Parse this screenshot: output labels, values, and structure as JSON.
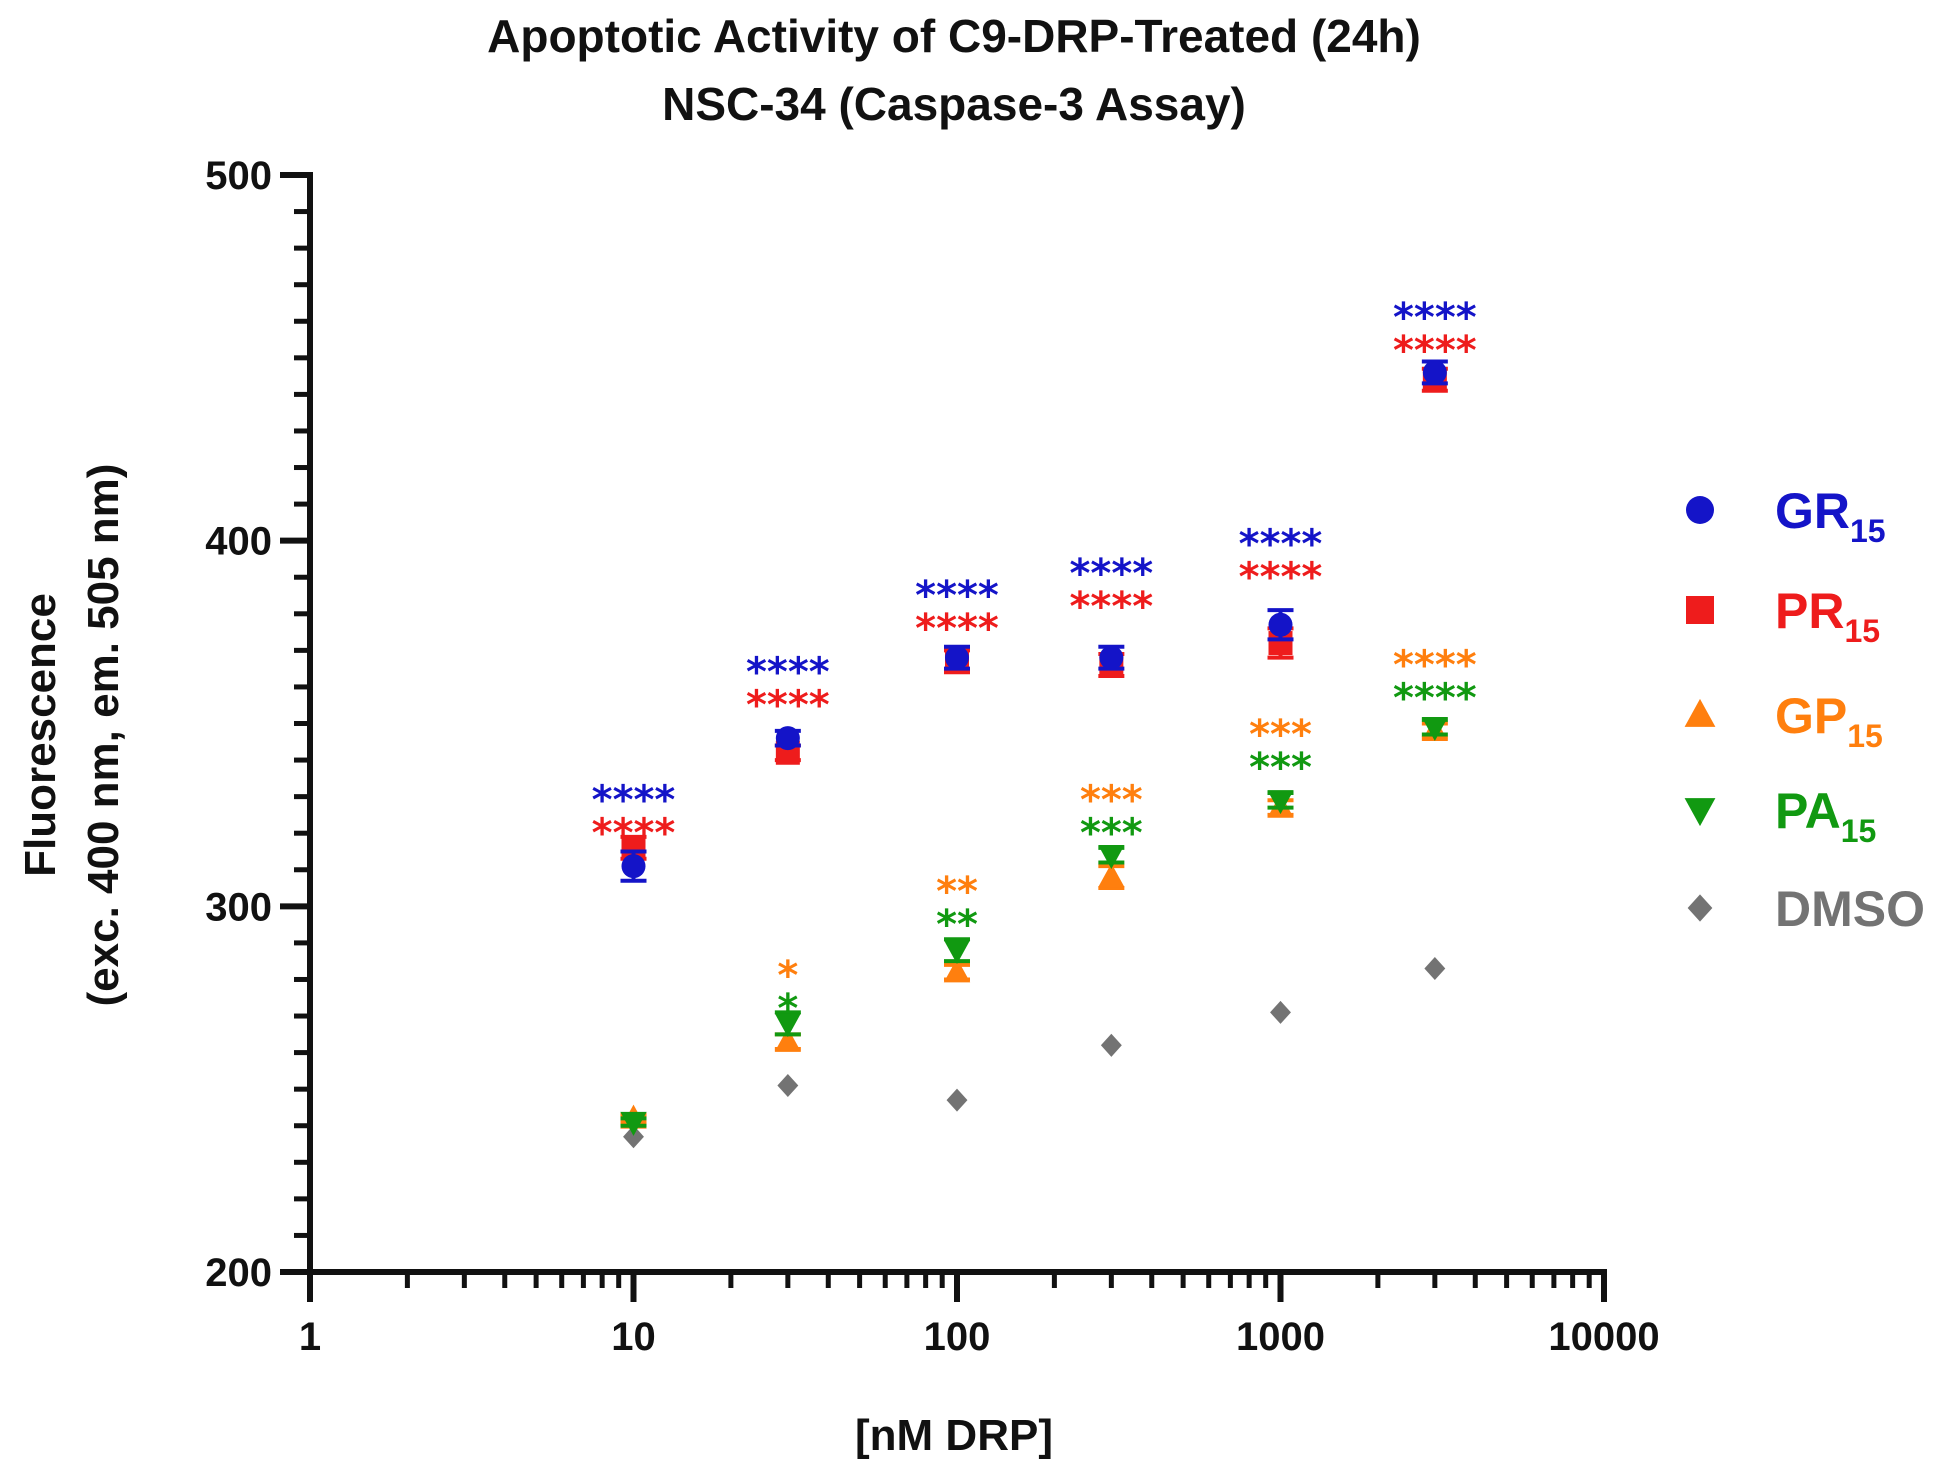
{
  "chart_data": {
    "type": "scatter",
    "title_lines": [
      "Apoptotic Activity of C9-DRP-Treated (24h)",
      "NSC-34 (Caspase-3 Assay)"
    ],
    "xlabel": "[nM DRP]",
    "ylabel_lines": [
      "Fluorescence",
      "(exc. 400 nm, em. 505 nm)"
    ],
    "xscale": "log",
    "xlim": [
      1,
      10000
    ],
    "ylim": [
      200,
      500
    ],
    "x_ticks": [
      1,
      10,
      100,
      1000,
      10000
    ],
    "x_tick_labels": [
      "1",
      "10",
      "100",
      "1000",
      "10000"
    ],
    "y_ticks": [
      200,
      300,
      400,
      500
    ],
    "y_tick_labels": [
      "200",
      "300",
      "400",
      "500"
    ],
    "y_minor_step": 10,
    "legend_position": "right",
    "series": [
      {
        "name": "GR",
        "subscript": "15",
        "marker": "circle",
        "color": "#1414c8",
        "x": [
          10,
          30,
          100,
          300,
          1000,
          3000
        ],
        "values": [
          311,
          346,
          368,
          368,
          377,
          446
        ],
        "err": [
          4,
          2,
          3,
          3,
          4,
          3
        ]
      },
      {
        "name": "PR",
        "subscript": "15",
        "marker": "square",
        "color": "#ee1c1c",
        "x": [
          10,
          30,
          100,
          300,
          1000,
          3000
        ],
        "values": [
          316,
          342,
          367,
          366,
          372,
          444
        ],
        "err": [
          3,
          2,
          3,
          3,
          4,
          3
        ]
      },
      {
        "name": "GP",
        "subscript": "15",
        "marker": "triangle-up",
        "color": "#ff7f0e",
        "x": [
          10,
          30,
          100,
          300,
          1000,
          3000
        ],
        "values": [
          242,
          263,
          282,
          308,
          327,
          348
        ],
        "err": [
          1,
          2,
          2,
          3,
          2,
          2
        ]
      },
      {
        "name": "PA",
        "subscript": "15",
        "marker": "triangle-down",
        "color": "#119911",
        "x": [
          10,
          30,
          100,
          300,
          1000,
          3000
        ],
        "values": [
          241,
          268,
          288,
          314,
          329,
          349
        ],
        "err": [
          1,
          3,
          3,
          2,
          2,
          2
        ]
      },
      {
        "name": "DMSO",
        "subscript": "",
        "marker": "diamond",
        "color": "#737373",
        "x": [
          10,
          30,
          100,
          300,
          1000,
          3000
        ],
        "values": [
          237,
          251,
          247,
          262,
          271,
          283
        ],
        "err": [
          0,
          0,
          0,
          0,
          0,
          0
        ]
      }
    ],
    "annotations": [
      {
        "x": 10,
        "y": 333,
        "text": "****",
        "color": "#1414c8"
      },
      {
        "x": 10,
        "y": 324,
        "text": "****",
        "color": "#ee1c1c"
      },
      {
        "x": 30,
        "y": 368,
        "text": "****",
        "color": "#1414c8"
      },
      {
        "x": 30,
        "y": 359,
        "text": "****",
        "color": "#ee1c1c"
      },
      {
        "x": 100,
        "y": 389,
        "text": "****",
        "color": "#1414c8"
      },
      {
        "x": 100,
        "y": 380,
        "text": "****",
        "color": "#ee1c1c"
      },
      {
        "x": 300,
        "y": 395,
        "text": "****",
        "color": "#1414c8"
      },
      {
        "x": 300,
        "y": 386,
        "text": "****",
        "color": "#ee1c1c"
      },
      {
        "x": 1000,
        "y": 403,
        "text": "****",
        "color": "#1414c8"
      },
      {
        "x": 1000,
        "y": 394,
        "text": "****",
        "color": "#ee1c1c"
      },
      {
        "x": 3000,
        "y": 465,
        "text": "****",
        "color": "#1414c8"
      },
      {
        "x": 3000,
        "y": 456,
        "text": "****",
        "color": "#ee1c1c"
      },
      {
        "x": 30,
        "y": 285,
        "text": "*",
        "color": "#ff7f0e"
      },
      {
        "x": 30,
        "y": 276,
        "text": "*",
        "color": "#119911"
      },
      {
        "x": 100,
        "y": 308,
        "text": "**",
        "color": "#ff7f0e"
      },
      {
        "x": 100,
        "y": 299,
        "text": "**",
        "color": "#119911"
      },
      {
        "x": 300,
        "y": 333,
        "text": "***",
        "color": "#ff7f0e"
      },
      {
        "x": 300,
        "y": 324,
        "text": "***",
        "color": "#119911"
      },
      {
        "x": 1000,
        "y": 351,
        "text": "***",
        "color": "#ff7f0e"
      },
      {
        "x": 1000,
        "y": 342,
        "text": "***",
        "color": "#119911"
      },
      {
        "x": 3000,
        "y": 370,
        "text": "****",
        "color": "#ff7f0e"
      },
      {
        "x": 3000,
        "y": 361,
        "text": "****",
        "color": "#119911"
      }
    ]
  }
}
